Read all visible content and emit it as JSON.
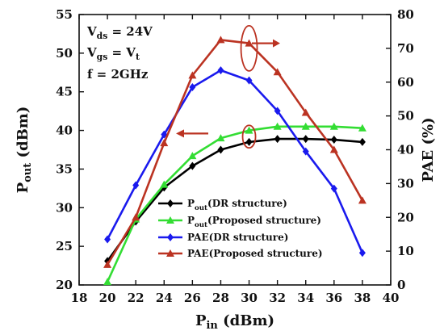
{
  "chart_data": {
    "type": "line",
    "x": [
      20,
      22,
      24,
      26,
      28,
      30,
      32,
      34,
      36,
      38
    ],
    "xlim": [
      18,
      40
    ],
    "xticks": [
      18,
      20,
      22,
      24,
      26,
      28,
      30,
      32,
      34,
      36,
      38,
      40
    ],
    "xlabel": {
      "main": "P",
      "sub": "in",
      "rest": " (dBm)"
    },
    "y_left": {
      "label": {
        "main": "P",
        "sub": "out",
        "rest": " (dBm)"
      },
      "ylim": [
        20,
        55
      ],
      "ticks": [
        20,
        25,
        30,
        35,
        40,
        45,
        50,
        55
      ]
    },
    "y_right": {
      "label": "PAE (%)",
      "ylim": [
        0,
        80
      ],
      "ticks": [
        0,
        10,
        20,
        30,
        40,
        50,
        60,
        70,
        80
      ]
    },
    "series": [
      {
        "name": "P_out (DR structure)",
        "legend": {
          "main": "P",
          "sub": "out",
          "rest": "(DR structure)"
        },
        "axis": "left",
        "color": "#000000",
        "marker": "diamond",
        "values": [
          23.1,
          28.2,
          32.6,
          35.4,
          37.5,
          38.5,
          38.9,
          38.9,
          38.8,
          38.5
        ]
      },
      {
        "name": "P_out (Proposed structure)",
        "legend": {
          "main": "P",
          "sub": "out",
          "rest": "(Proposed structure)"
        },
        "axis": "left",
        "color": "#33dd33",
        "marker": "triangle",
        "values": [
          20.4,
          28.5,
          33.0,
          36.7,
          39.0,
          40.0,
          40.5,
          40.5,
          40.5,
          40.3
        ]
      },
      {
        "name": "PAE (DR structure)",
        "legend": {
          "main": "PAE(DR structure)",
          "sub": "",
          "rest": ""
        },
        "axis": "right",
        "color": "#1a1aee",
        "marker": "diamond",
        "values": [
          13.5,
          29.5,
          44.5,
          58.5,
          63.5,
          60.5,
          51.5,
          39.5,
          28.5,
          9.5
        ]
      },
      {
        "name": "PAE (Proposed structure)",
        "legend": {
          "main": "PAE(Proposed structure)",
          "sub": "",
          "rest": ""
        },
        "axis": "right",
        "color": "#bb3322",
        "marker": "triangle",
        "values": [
          6.0,
          20.0,
          42.0,
          62.0,
          72.5,
          71.5,
          63.0,
          51.0,
          40.0,
          25.0
        ]
      }
    ],
    "annotations": [
      {
        "main": "V",
        "sub": "ds",
        "rest": " = 24V"
      },
      {
        "main": "V",
        "sub": "gs",
        "rest": " = V",
        "sub2": "t"
      },
      {
        "main": "f = 2GHz",
        "sub": "",
        "rest": ""
      }
    ],
    "legend_position": "bottom-right",
    "grid": false
  }
}
